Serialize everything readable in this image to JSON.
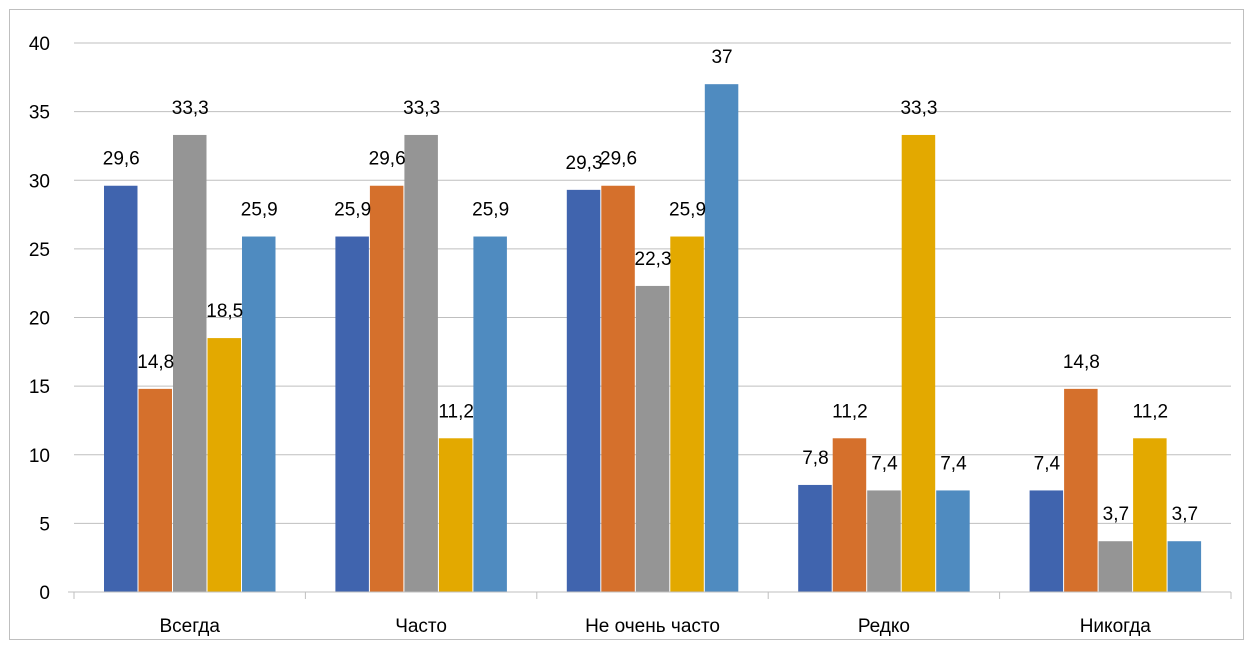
{
  "chart_data": {
    "type": "bar",
    "title": "",
    "xlabel": "",
    "ylabel": "",
    "categories": [
      "Всегда",
      "Часто",
      "Не очень часто",
      "Редко",
      "Никогда"
    ],
    "series": [
      {
        "color": "#4064AE",
        "values": [
          29.6,
          25.9,
          29.3,
          7.8,
          7.4
        ],
        "labels": [
          "29,6",
          "25,9",
          "29,3",
          "7,8",
          "7,4"
        ]
      },
      {
        "color": "#D5702C",
        "values": [
          14.8,
          29.6,
          29.6,
          11.2,
          14.8
        ],
        "labels": [
          "14,8",
          "29,6",
          "29,6",
          "11,2",
          "14,8"
        ]
      },
      {
        "color": "#959595",
        "values": [
          33.3,
          33.3,
          22.3,
          7.4,
          3.7
        ],
        "labels": [
          "33,3",
          "33,3",
          "22,3",
          "7,4",
          "3,7"
        ]
      },
      {
        "color": "#E3A900",
        "values": [
          18.5,
          11.2,
          25.9,
          33.3,
          11.2
        ],
        "labels": [
          "18,5",
          "11,2",
          "25,9",
          "33,3",
          "11,2"
        ]
      },
      {
        "color": "#4F8BC0",
        "values": [
          25.9,
          25.9,
          37,
          7.4,
          3.7
        ],
        "labels": [
          "25,9",
          "25,9",
          "37",
          "7,4",
          "3,7"
        ]
      }
    ],
    "ylim": [
      0,
      40
    ],
    "yticks": [
      0,
      5,
      10,
      15,
      20,
      25,
      30,
      35,
      40
    ],
    "grid": true,
    "legend": "none"
  }
}
